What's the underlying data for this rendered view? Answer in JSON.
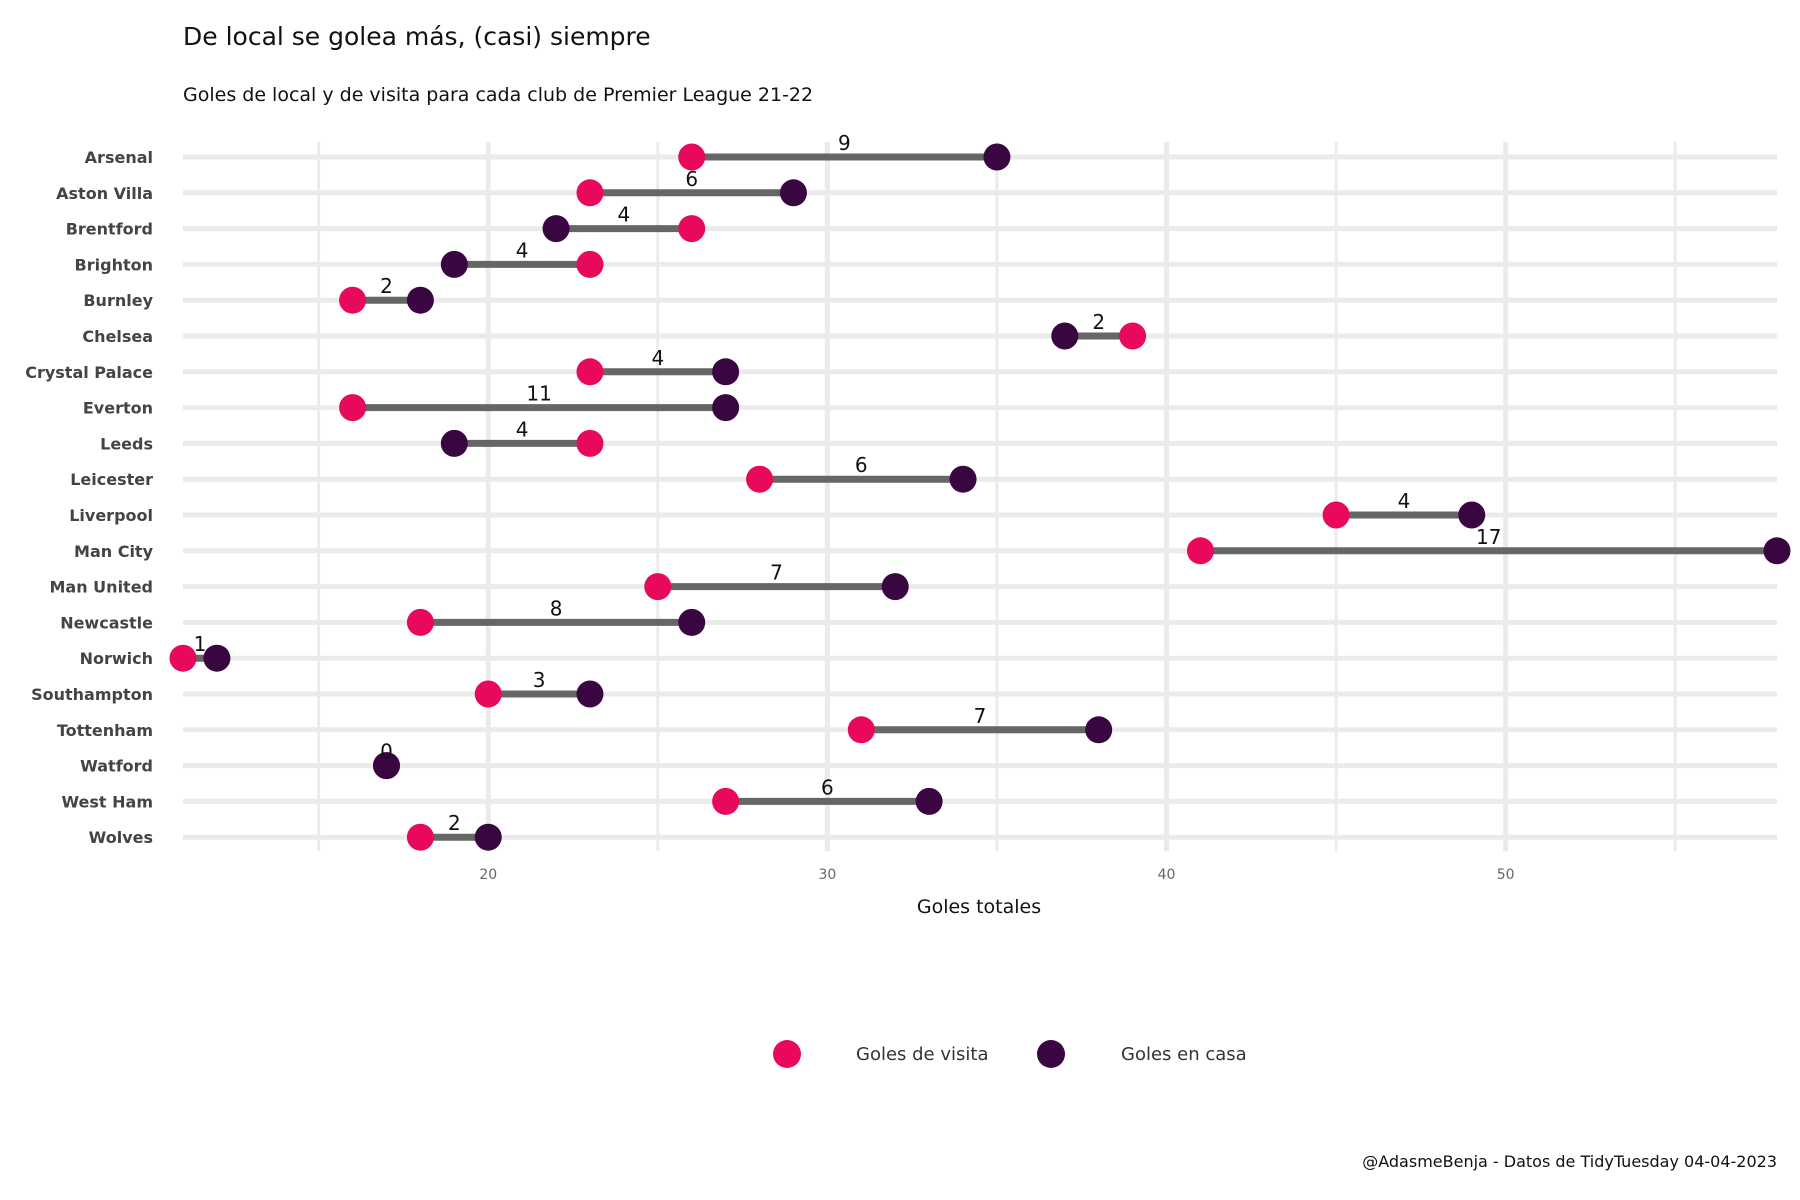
{
  "title": "De local se golea más, (casi) siempre",
  "subtitle": "Goles de local y de visita para cada club de Premier League 21-22",
  "caption": "@AdasmeBenja - Datos de TidyTuesday 04-04-2023",
  "colors": {
    "away": "#E8085C",
    "home": "#3A0642",
    "segment": "#666666",
    "grid": "#EBEBEB"
  },
  "chart_data": {
    "type": "dumbbell",
    "xlabel": "Goles totales",
    "xlim": [
      11,
      58
    ],
    "xticks": [
      20,
      30,
      40,
      50
    ],
    "grid": true,
    "legend_position": "bottom",
    "series": [
      {
        "name": "Goles de visita",
        "key": "away"
      },
      {
        "name": "Goles en casa",
        "key": "home"
      }
    ],
    "categories": [
      "Arsenal",
      "Aston Villa",
      "Brentford",
      "Brighton",
      "Burnley",
      "Chelsea",
      "Crystal Palace",
      "Everton",
      "Leeds",
      "Leicester",
      "Liverpool",
      "Man City",
      "Man United",
      "Newcastle",
      "Norwich",
      "Southampton",
      "Tottenham",
      "Watford",
      "West Ham",
      "Wolves"
    ],
    "away": [
      26,
      23,
      26,
      23,
      16,
      39,
      23,
      16,
      23,
      28,
      45,
      41,
      25,
      18,
      11,
      20,
      31,
      17,
      27,
      18
    ],
    "home": [
      35,
      29,
      22,
      19,
      18,
      37,
      27,
      27,
      19,
      34,
      49,
      58,
      32,
      26,
      12,
      23,
      38,
      17,
      33,
      20
    ],
    "diff": [
      9,
      6,
      4,
      4,
      2,
      2,
      4,
      11,
      4,
      6,
      4,
      17,
      7,
      8,
      1,
      3,
      7,
      0,
      6,
      2
    ]
  }
}
